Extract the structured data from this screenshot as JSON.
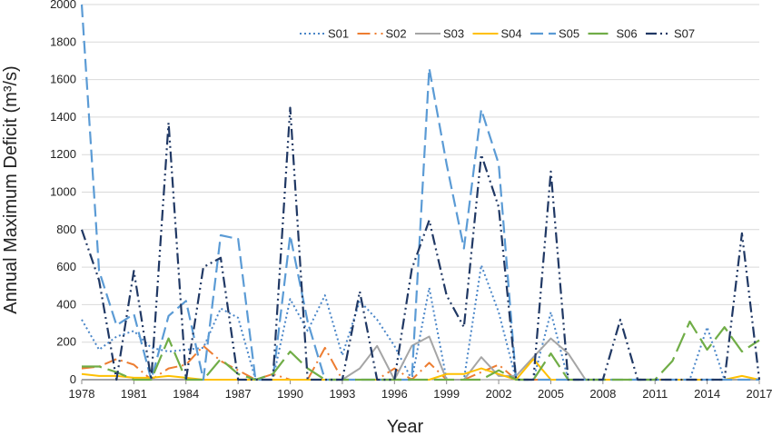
{
  "chart_data": {
    "type": "line",
    "xlabel": "Year",
    "ylabel": "Annual Maximum Deficit (m³/s)",
    "xlim": [
      1978,
      2017
    ],
    "ylim": [
      0,
      2000
    ],
    "x_ticks": [
      "1978",
      "1981",
      "1984",
      "1987",
      "1990",
      "1993",
      "1996",
      "1999",
      "2002",
      "2005",
      "2008",
      "2011",
      "2014",
      "2017"
    ],
    "y_ticks": [
      "0",
      "200",
      "400",
      "600",
      "800",
      "1000",
      "1200",
      "1400",
      "1600",
      "1800",
      "2000"
    ],
    "legend_position": "top-right",
    "grid": "horizontal",
    "x": [
      1978,
      1979,
      1980,
      1981,
      1982,
      1983,
      1984,
      1985,
      1986,
      1987,
      1988,
      1989,
      1990,
      1991,
      1992,
      1993,
      1994,
      1995,
      1996,
      1997,
      1998,
      1999,
      2000,
      2001,
      2002,
      2003,
      2004,
      2005,
      2006,
      2007,
      2008,
      2009,
      2010,
      2011,
      2012,
      2013,
      2014,
      2015,
      2016,
      2017
    ],
    "series": [
      {
        "name": "S01",
        "color": "#4a86c8",
        "dash": "2,3",
        "width": 2,
        "values": [
          320,
          160,
          230,
          260,
          170,
          150,
          160,
          170,
          380,
          330,
          0,
          0,
          430,
          260,
          450,
          130,
          420,
          320,
          180,
          0,
          490,
          0,
          0,
          610,
          360,
          0,
          0,
          360,
          0,
          0,
          0,
          0,
          0,
          0,
          0,
          0,
          280,
          0,
          0,
          0
        ]
      },
      {
        "name": "S02",
        "color": "#ed7d31",
        "dash": "14,5,2,5",
        "width": 2,
        "values": [
          60,
          70,
          110,
          80,
          0,
          60,
          80,
          180,
          100,
          50,
          0,
          30,
          0,
          0,
          170,
          0,
          0,
          0,
          60,
          0,
          90,
          0,
          0,
          40,
          80,
          0,
          0,
          0,
          0,
          0,
          0,
          0,
          0,
          0,
          0,
          0,
          0,
          0,
          0,
          0
        ]
      },
      {
        "name": "S03",
        "color": "#a5a5a5",
        "dash": "",
        "width": 2,
        "values": [
          0,
          0,
          0,
          0,
          0,
          0,
          0,
          0,
          0,
          0,
          0,
          0,
          0,
          0,
          0,
          0,
          60,
          180,
          0,
          180,
          230,
          0,
          0,
          120,
          20,
          20,
          120,
          220,
          140,
          0,
          0,
          0,
          0,
          0,
          0,
          0,
          0,
          0,
          0,
          0
        ]
      },
      {
        "name": "S04",
        "color": "#ffc000",
        "dash": "",
        "width": 2,
        "values": [
          30,
          20,
          20,
          10,
          10,
          20,
          10,
          0,
          0,
          0,
          0,
          0,
          0,
          0,
          0,
          0,
          0,
          0,
          0,
          0,
          0,
          30,
          30,
          60,
          30,
          0,
          110,
          0,
          0,
          0,
          0,
          0,
          0,
          0,
          0,
          0,
          0,
          0,
          20,
          0
        ]
      },
      {
        "name": "S05",
        "color": "#5b9bd5",
        "dash": "14,6",
        "width": 2.2,
        "values": [
          2000,
          580,
          290,
          350,
          0,
          340,
          420,
          0,
          770,
          750,
          0,
          0,
          770,
          310,
          0,
          0,
          0,
          0,
          0,
          0,
          1660,
          1150,
          700,
          1440,
          1150,
          0,
          0,
          0,
          0,
          0,
          0,
          0,
          0,
          0,
          0,
          0,
          0,
          0,
          0,
          0
        ]
      },
      {
        "name": "S06",
        "color": "#70ad47",
        "dash": "22,7",
        "width": 2.2,
        "values": [
          70,
          70,
          40,
          0,
          0,
          220,
          0,
          0,
          110,
          30,
          0,
          30,
          150,
          60,
          0,
          0,
          0,
          0,
          0,
          0,
          0,
          0,
          0,
          0,
          50,
          0,
          0,
          140,
          0,
          0,
          0,
          0,
          0,
          0,
          100,
          310,
          160,
          280,
          150,
          210
        ]
      },
      {
        "name": "S07",
        "color": "#203864",
        "dash": "12,4,2,4,2,4",
        "width": 2.2,
        "values": [
          800,
          530,
          0,
          580,
          0,
          1370,
          0,
          600,
          650,
          0,
          0,
          0,
          1450,
          0,
          0,
          0,
          470,
          0,
          0,
          590,
          850,
          450,
          280,
          1200,
          920,
          0,
          0,
          1110,
          0,
          0,
          0,
          320,
          0,
          0,
          0,
          0,
          0,
          0,
          780,
          0
        ]
      }
    ]
  }
}
